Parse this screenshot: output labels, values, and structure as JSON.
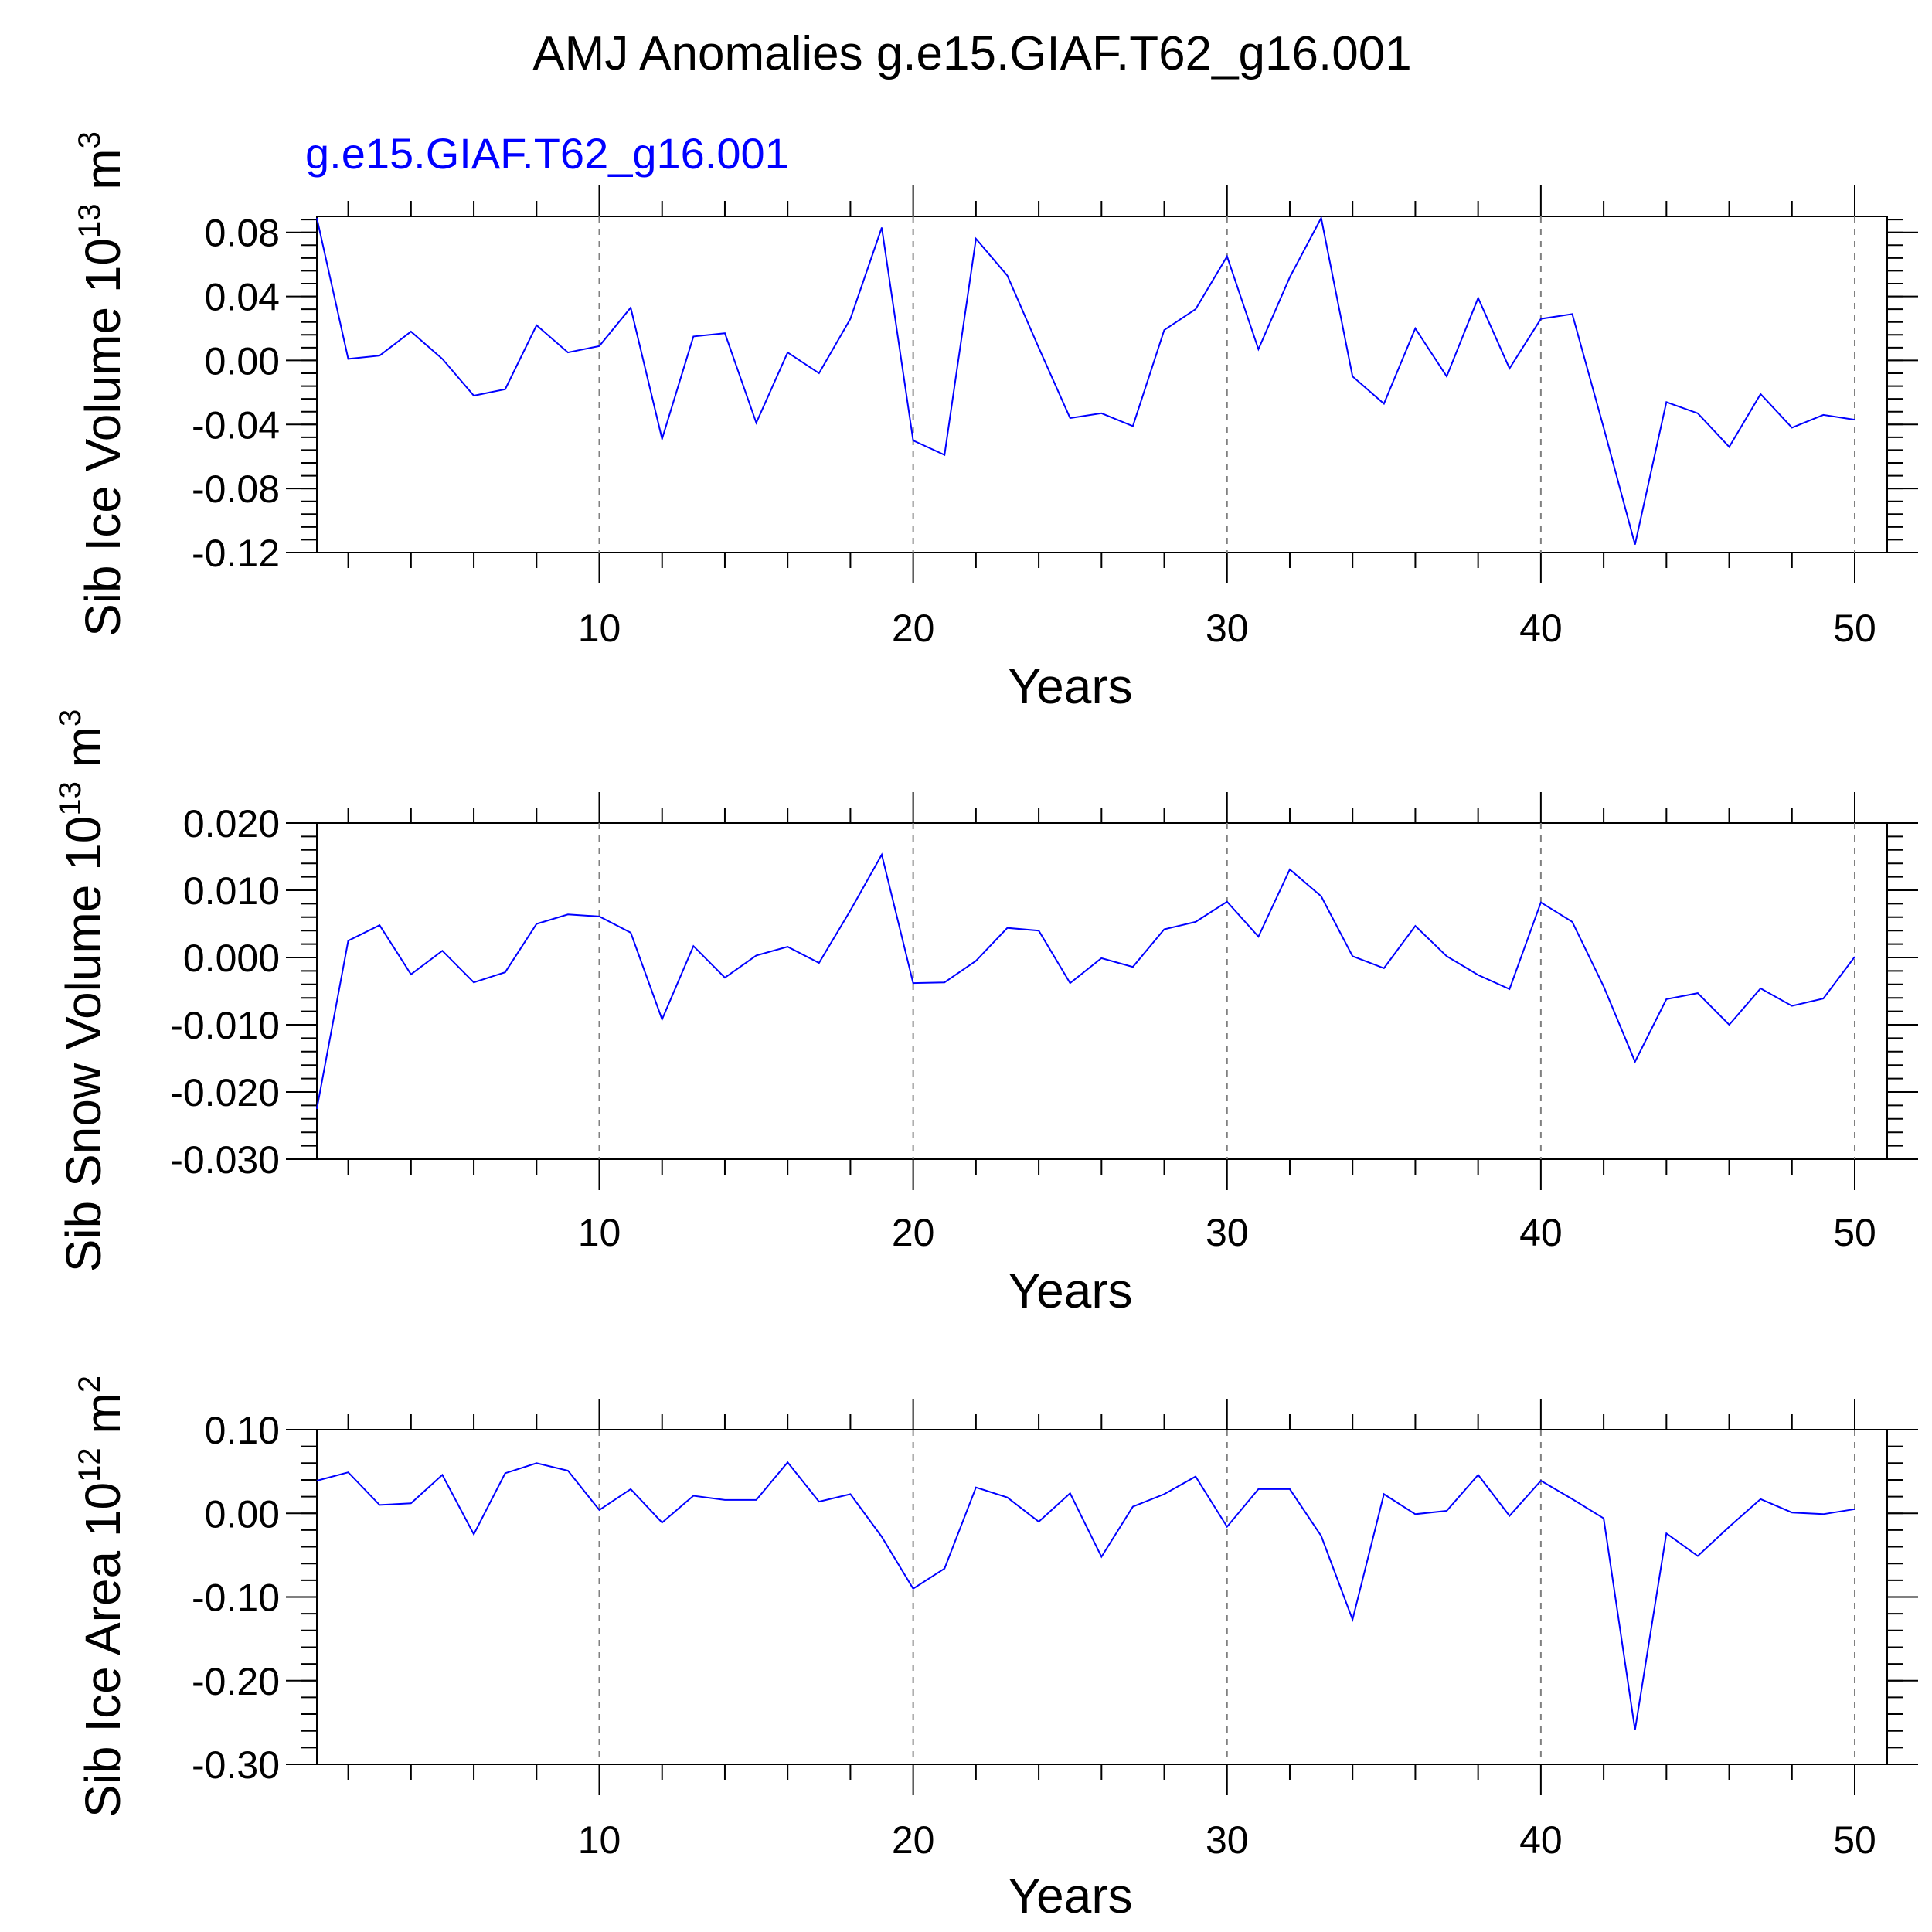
{
  "title": "AMJ Anomalies g.e15.GIAF.T62_g16.001",
  "case_label": "g.e15.GIAF.T62_g16.001",
  "colors": {
    "series": "#0000ff",
    "axis": "#000000",
    "grid": "#808080",
    "case_label": "#0000ff"
  },
  "chart_data": [
    {
      "type": "line",
      "ylabel": {
        "main": "Sib Ice Volume 10",
        "exp": "13",
        "unit": " m",
        "unit_exp": "3"
      },
      "xlabel": "Years",
      "xlim": [
        1,
        50
      ],
      "ylim": [
        -0.12,
        0.09
      ],
      "xticks": [
        "10",
        "20",
        "30",
        "40",
        "50"
      ],
      "yticks": [
        "0.08",
        "0.04",
        "0.00",
        "-0.04",
        "-0.08",
        "-0.12"
      ],
      "series": [
        {
          "name": "g.e15.GIAF.T62_g16.001",
          "x": [
            1,
            2,
            3,
            4,
            5,
            6,
            7,
            8,
            9,
            10,
            11,
            12,
            13,
            14,
            15,
            16,
            17,
            18,
            19,
            20,
            21,
            22,
            23,
            24,
            25,
            26,
            27,
            28,
            29,
            30,
            31,
            32,
            33,
            34,
            35,
            36,
            37,
            38,
            39,
            40,
            41,
            42,
            43,
            44,
            45,
            46,
            47,
            48,
            49,
            50
          ],
          "values": [
            0.089,
            0.001,
            0.003,
            0.018,
            0.001,
            -0.022,
            -0.018,
            0.022,
            0.005,
            0.009,
            0.033,
            -0.049,
            0.015,
            0.017,
            -0.039,
            0.005,
            -0.008,
            0.026,
            0.083,
            -0.05,
            -0.059,
            0.076,
            0.053,
            0.008,
            -0.036,
            -0.033,
            -0.041,
            0.019,
            0.032,
            0.065,
            0.007,
            0.052,
            0.089,
            -0.01,
            -0.027,
            0.02,
            -0.01,
            0.039,
            -0.005,
            0.026,
            0.029,
            -0.042,
            -0.115,
            -0.026,
            -0.033,
            -0.054,
            -0.021,
            -0.042,
            -0.034,
            -0.037
          ]
        }
      ]
    },
    {
      "type": "line",
      "ylabel": {
        "main": "Sib Snow Volume 10",
        "exp": "13",
        "unit": " m",
        "unit_exp": "3"
      },
      "xlabel": "Years",
      "xlim": [
        1,
        50
      ],
      "ylim": [
        -0.03,
        0.02
      ],
      "xticks": [
        "10",
        "20",
        "30",
        "40",
        "50"
      ],
      "yticks": [
        "0.020",
        "0.010",
        "0.000",
        "-0.010",
        "-0.020",
        "-0.030"
      ],
      "series": [
        {
          "name": "g.e15.GIAF.T62_g16.001",
          "x": [
            1,
            2,
            3,
            4,
            5,
            6,
            7,
            8,
            9,
            10,
            11,
            12,
            13,
            14,
            15,
            16,
            17,
            18,
            19,
            20,
            21,
            22,
            23,
            24,
            25,
            26,
            27,
            28,
            29,
            30,
            31,
            32,
            33,
            34,
            35,
            36,
            37,
            38,
            39,
            40,
            41,
            42,
            43,
            44,
            45,
            46,
            47,
            48,
            49,
            50
          ],
          "values": [
            -0.0225,
            0.0025,
            0.0048,
            -0.0025,
            0.001,
            -0.0037,
            -0.0022,
            0.005,
            0.0064,
            0.0061,
            0.0037,
            -0.0092,
            0.0017,
            -0.003,
            0.0003,
            0.0016,
            -0.0008,
            0.007,
            0.0153,
            -0.0038,
            -0.0037,
            -0.0005,
            0.0044,
            0.004,
            -0.0038,
            -0.0001,
            -0.0014,
            0.0042,
            0.0053,
            0.0083,
            0.0031,
            0.0131,
            0.0091,
            0.0002,
            -0.0016,
            0.0047,
            0.0002,
            -0.0026,
            -0.0047,
            0.0082,
            0.0053,
            -0.0043,
            -0.0155,
            -0.0062,
            -0.0053,
            -0.01,
            -0.0046,
            -0.0072,
            -0.0061,
            0.0001
          ]
        }
      ]
    },
    {
      "type": "line",
      "ylabel": {
        "main": "Sib Ice Area 10",
        "exp": "12",
        "unit": " m",
        "unit_exp": "2"
      },
      "xlabel": "Years",
      "xlim": [
        1,
        50
      ],
      "ylim": [
        -0.3,
        0.1
      ],
      "xticks": [
        "10",
        "20",
        "30",
        "40",
        "50"
      ],
      "yticks": [
        "0.10",
        "0.00",
        "-0.10",
        "-0.20",
        "-0.30"
      ],
      "series": [
        {
          "name": "g.e15.GIAF.T62_g16.001",
          "x": [
            1,
            2,
            3,
            4,
            5,
            6,
            7,
            8,
            9,
            10,
            11,
            12,
            13,
            14,
            15,
            16,
            17,
            18,
            19,
            20,
            21,
            22,
            23,
            24,
            25,
            26,
            27,
            28,
            29,
            30,
            31,
            32,
            33,
            34,
            35,
            36,
            37,
            38,
            39,
            40,
            41,
            42,
            43,
            44,
            45,
            46,
            47,
            48,
            49,
            50
          ],
          "values": [
            0.039,
            0.049,
            0.01,
            0.012,
            0.046,
            -0.025,
            0.048,
            0.06,
            0.051,
            0.004,
            0.029,
            -0.011,
            0.021,
            0.016,
            0.016,
            0.061,
            0.014,
            0.023,
            -0.028,
            -0.09,
            -0.066,
            0.031,
            0.019,
            -0.01,
            0.024,
            -0.052,
            0.008,
            0.023,
            0.044,
            -0.016,
            0.029,
            0.029,
            -0.027,
            -0.127,
            0.023,
            -0.001,
            0.003,
            0.046,
            -0.003,
            0.039,
            0.017,
            -0.006,
            -0.259,
            -0.024,
            -0.051,
            -0.016,
            0.017,
            0.001,
            -0.001,
            0.005
          ]
        }
      ]
    }
  ]
}
